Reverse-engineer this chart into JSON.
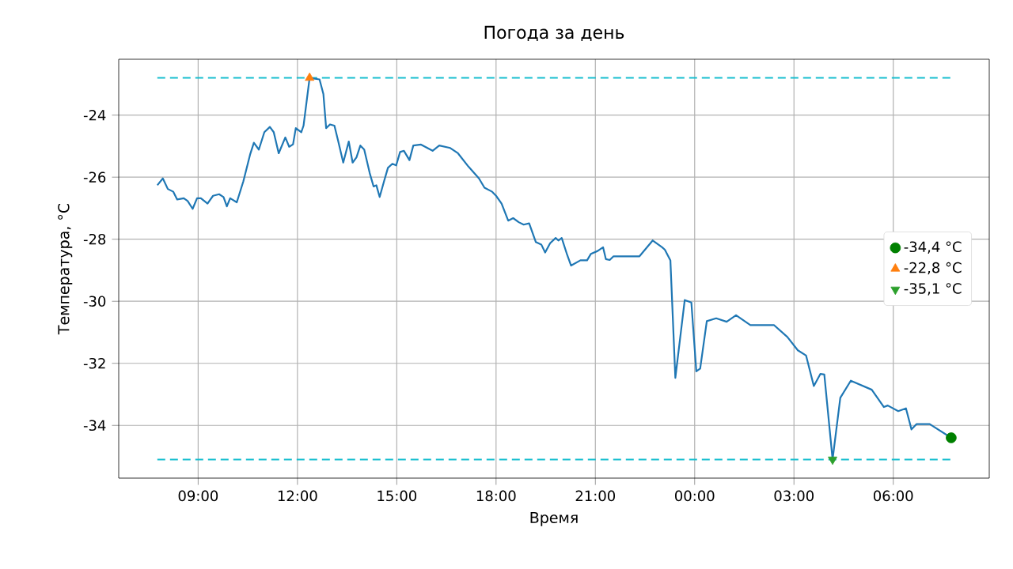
{
  "chart_data": {
    "type": "line",
    "title": "Погода за день",
    "xlabel": "Время",
    "ylabel": "Температура, °C",
    "xlim": [
      "2000-01-01T06:36",
      "2000-01-02T08:54"
    ],
    "ylim": [
      -35.7,
      -22.2
    ],
    "xticks": [
      {
        "value": "2000-01-01T09:00",
        "label": "09:00"
      },
      {
        "value": "2000-01-01T12:00",
        "label": "12:00"
      },
      {
        "value": "2000-01-01T15:00",
        "label": "15:00"
      },
      {
        "value": "2000-01-01T18:00",
        "label": "18:00"
      },
      {
        "value": "2000-01-01T21:00",
        "label": "21:00"
      },
      {
        "value": "2000-01-02T00:00",
        "label": "00:00"
      },
      {
        "value": "2000-01-02T03:00",
        "label": "03:00"
      },
      {
        "value": "2000-01-02T06:00",
        "label": "06:00"
      }
    ],
    "yticks": [
      -34,
      -32,
      -30,
      -28,
      -26,
      -24
    ],
    "grid": true,
    "legend": "right",
    "ref_lines": [
      {
        "axis": "y",
        "value": -22.8,
        "color": "#17becf",
        "line_style": "dashed"
      },
      {
        "axis": "y",
        "value": -35.1,
        "color": "#17becf",
        "line_style": "dashed"
      }
    ],
    "series": [
      {
        "color": "#1f77b4",
        "marker": "none",
        "line_style": "solid",
        "x": [
          "2000-01-01T07:46",
          "2000-01-01T07:56",
          "2000-01-01T08:05",
          "2000-01-01T08:15",
          "2000-01-01T08:22",
          "2000-01-01T08:34",
          "2000-01-01T08:41",
          "2000-01-01T08:50",
          "2000-01-01T08:58",
          "2000-01-01T09:05",
          "2000-01-01T09:17",
          "2000-01-01T09:27",
          "2000-01-01T09:38",
          "2000-01-01T09:46",
          "2000-01-01T09:52",
          "2000-01-01T09:58",
          "2000-01-01T10:10",
          "2000-01-01T10:22",
          "2000-01-01T10:34",
          "2000-01-01T10:41",
          "2000-01-01T10:50",
          "2000-01-01T11:00",
          "2000-01-01T11:10",
          "2000-01-01T11:17",
          "2000-01-01T11:26",
          "2000-01-01T11:38",
          "2000-01-01T11:45",
          "2000-01-01T11:52",
          "2000-01-01T11:57",
          "2000-01-01T12:07",
          "2000-01-01T12:11",
          "2000-01-01T12:22",
          "2000-01-01T12:40",
          "2000-01-01T12:47",
          "2000-01-01T12:52",
          "2000-01-01T12:59",
          "2000-01-01T13:07",
          "2000-01-01T13:14",
          "2000-01-01T13:23",
          "2000-01-01T13:33",
          "2000-01-01T13:40",
          "2000-01-01T13:47",
          "2000-01-01T13:54",
          "2000-01-01T14:01",
          "2000-01-01T14:11",
          "2000-01-01T14:18",
          "2000-01-01T14:23",
          "2000-01-01T14:29",
          "2000-01-01T14:37",
          "2000-01-01T14:44",
          "2000-01-01T14:52",
          "2000-01-01T14:59",
          "2000-01-01T15:06",
          "2000-01-01T15:13",
          "2000-01-01T15:23",
          "2000-01-01T15:30",
          "2000-01-01T15:44",
          "2000-01-01T16:05",
          "2000-01-01T16:17",
          "2000-01-01T16:37",
          "2000-01-01T16:51",
          "2000-01-01T17:10",
          "2000-01-01T17:29",
          "2000-01-01T17:39",
          "2000-01-01T17:53",
          "2000-01-01T18:00",
          "2000-01-01T18:10",
          "2000-01-01T18:22",
          "2000-01-01T18:31",
          "2000-01-01T18:41",
          "2000-01-01T18:50",
          "2000-01-01T19:00",
          "2000-01-01T19:12",
          "2000-01-01T19:22",
          "2000-01-01T19:29",
          "2000-01-01T19:38",
          "2000-01-01T19:48",
          "2000-01-01T19:53",
          "2000-01-01T19:59",
          "2000-01-01T20:09",
          "2000-01-01T20:16",
          "2000-01-01T20:33",
          "2000-01-01T20:45",
          "2000-01-01T20:52",
          "2000-01-01T21:04",
          "2000-01-01T21:14",
          "2000-01-01T21:19",
          "2000-01-01T21:26",
          "2000-01-01T21:33",
          "2000-01-01T22:20",
          "2000-01-01T22:44",
          "2000-01-01T23:01",
          "2000-01-01T23:06",
          "2000-01-01T23:16",
          "2000-01-01T23:25",
          "2000-01-01T23:42",
          "2000-01-01T23:54",
          "2000-01-02T00:03",
          "2000-01-02T00:10",
          "2000-01-02T00:22",
          "2000-01-02T00:39",
          "2000-01-02T00:58",
          "2000-01-02T01:15",
          "2000-01-02T01:41",
          "2000-01-02T02:24",
          "2000-01-02T02:48",
          "2000-01-02T03:07",
          "2000-01-02T03:22",
          "2000-01-02T03:36",
          "2000-01-02T03:48",
          "2000-01-02T03:55",
          "2000-01-02T04:10",
          "2000-01-02T04:24",
          "2000-01-02T04:43",
          "2000-01-02T05:21",
          "2000-01-02T05:43",
          "2000-01-02T05:50",
          "2000-01-02T06:09",
          "2000-01-02T06:23",
          "2000-01-02T06:33",
          "2000-01-02T06:42",
          "2000-01-02T07:06",
          "2000-01-02T07:45"
        ],
        "values": [
          -26.26,
          -26.04,
          -26.38,
          -26.47,
          -26.72,
          -26.68,
          -26.77,
          -27.02,
          -26.68,
          -26.68,
          -26.85,
          -26.6,
          -26.55,
          -26.64,
          -26.94,
          -26.68,
          -26.81,
          -26.13,
          -25.28,
          -24.89,
          -25.11,
          -24.55,
          -24.38,
          -24.55,
          -25.23,
          -24.72,
          -25.02,
          -24.94,
          -24.42,
          -24.55,
          -24.34,
          -22.8,
          -22.85,
          -23.32,
          -24.42,
          -24.3,
          -24.34,
          -24.85,
          -25.53,
          -24.85,
          -25.53,
          -25.36,
          -24.98,
          -25.11,
          -25.87,
          -26.3,
          -26.26,
          -26.64,
          -26.13,
          -25.7,
          -25.57,
          -25.62,
          -25.19,
          -25.15,
          -25.45,
          -24.98,
          -24.95,
          -25.15,
          -24.98,
          -25.06,
          -25.23,
          -25.66,
          -26.04,
          -26.34,
          -26.47,
          -26.6,
          -26.85,
          -27.4,
          -27.32,
          -27.45,
          -27.53,
          -27.49,
          -28.09,
          -28.17,
          -28.43,
          -28.13,
          -27.96,
          -28.04,
          -27.96,
          -28.51,
          -28.85,
          -28.68,
          -28.68,
          -28.47,
          -28.38,
          -28.26,
          -28.64,
          -28.67,
          -28.55,
          -28.55,
          -28.04,
          -28.26,
          -28.34,
          -28.68,
          -32.47,
          -29.96,
          -30.04,
          -32.26,
          -32.17,
          -30.64,
          -30.55,
          -30.66,
          -30.45,
          -30.77,
          -30.77,
          -31.15,
          -31.58,
          -31.75,
          -32.73,
          -32.34,
          -32.36,
          -35.1,
          -33.11,
          -32.56,
          -32.85,
          -33.41,
          -33.36,
          -33.54,
          -33.45,
          -34.13,
          -33.96,
          -33.96,
          -34.4
        ]
      },
      {
        "type": "scatter",
        "name": "-34,4 °C",
        "color": "#008000",
        "marker": "circle",
        "x": [
          "2000-01-02T07:45"
        ],
        "values": [
          -34.4
        ]
      },
      {
        "type": "scatter",
        "name": "-22,8 °C",
        "color": "#ff7f0e",
        "marker": "triangle",
        "x": [
          "2000-01-01T12:22"
        ],
        "values": [
          -22.8
        ]
      },
      {
        "type": "scatter",
        "name": "-35,1 °C",
        "color": "#2ca02c",
        "marker": "triangle_down",
        "x": [
          "2000-01-02T04:10"
        ],
        "values": [
          -35.1
        ]
      }
    ]
  }
}
